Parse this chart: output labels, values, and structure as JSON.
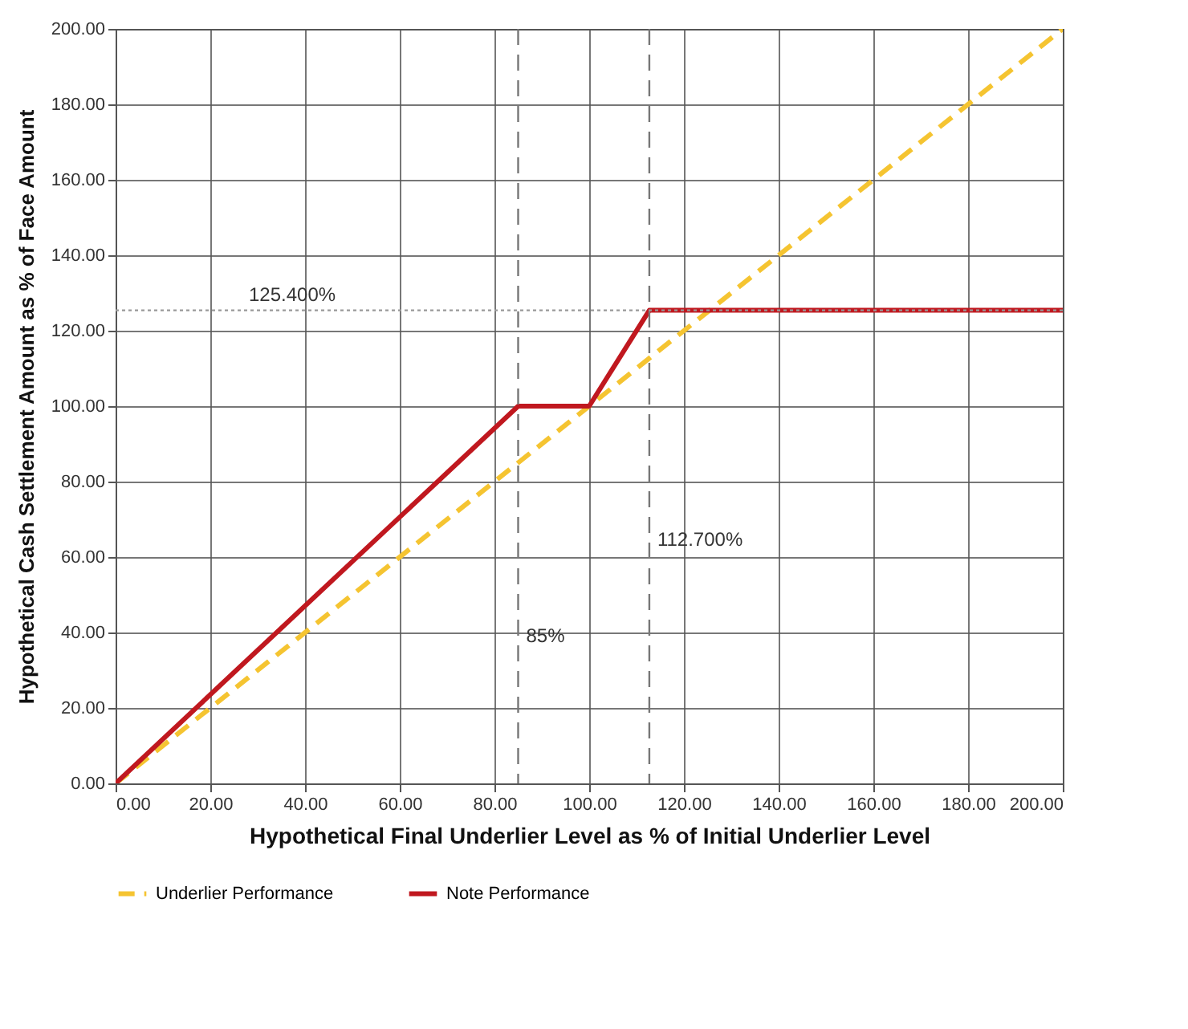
{
  "chart_data": {
    "type": "line",
    "xlabel": "Hypothetical Final Underlier Level as % of Initial Underlier Level",
    "ylabel": "Hypothetical Cash Settlement Amount as % of Face Amount",
    "xlim": [
      0,
      200
    ],
    "ylim": [
      0,
      200
    ],
    "xticks": [
      {
        "value": 0,
        "label": "0.00"
      },
      {
        "value": 20,
        "label": "20.00"
      },
      {
        "value": 40,
        "label": "40.00"
      },
      {
        "value": 60,
        "label": "60.00"
      },
      {
        "value": 80,
        "label": "80.00"
      },
      {
        "value": 100,
        "label": "100.00"
      },
      {
        "value": 120,
        "label": "120.00"
      },
      {
        "value": 140,
        "label": "140.00"
      },
      {
        "value": 160,
        "label": "160.00"
      },
      {
        "value": 180,
        "label": "180.00"
      },
      {
        "value": 200,
        "label": "200.00"
      }
    ],
    "yticks": [
      {
        "value": 0,
        "label": "0.00"
      },
      {
        "value": 20,
        "label": "20.00"
      },
      {
        "value": 40,
        "label": "40.00"
      },
      {
        "value": 60,
        "label": "60.00"
      },
      {
        "value": 80,
        "label": "80.00"
      },
      {
        "value": 100,
        "label": "100.00"
      },
      {
        "value": 120,
        "label": "120.00"
      },
      {
        "value": 140,
        "label": "140.00"
      },
      {
        "value": 160,
        "label": "160.00"
      },
      {
        "value": 180,
        "label": "180.00"
      },
      {
        "value": 200,
        "label": "200.00"
      }
    ],
    "grid": true,
    "legend": "bottom",
    "series": [
      {
        "name": "Underlier Performance",
        "color": "#f5c431",
        "line_style": "dashed",
        "x": [
          0,
          200
        ],
        "values": [
          0,
          200
        ]
      },
      {
        "name": "Note Performance",
        "color": "#c0181f",
        "line_style": "solid",
        "x": [
          0,
          85,
          100,
          112.7,
          200
        ],
        "values": [
          0,
          100,
          100,
          125.4,
          125.4
        ]
      }
    ],
    "ref_lines": [
      {
        "axis": "y",
        "value": 125.4,
        "label": "125.400%",
        "color": "#999999",
        "line_style": "dotted"
      },
      {
        "axis": "x",
        "value": 85,
        "label": "85%",
        "color": "#777777",
        "line_style": "dashed"
      },
      {
        "axis": "x",
        "value": 112.7,
        "label": "112.700%",
        "color": "#777777",
        "line_style": "dashed"
      }
    ]
  }
}
